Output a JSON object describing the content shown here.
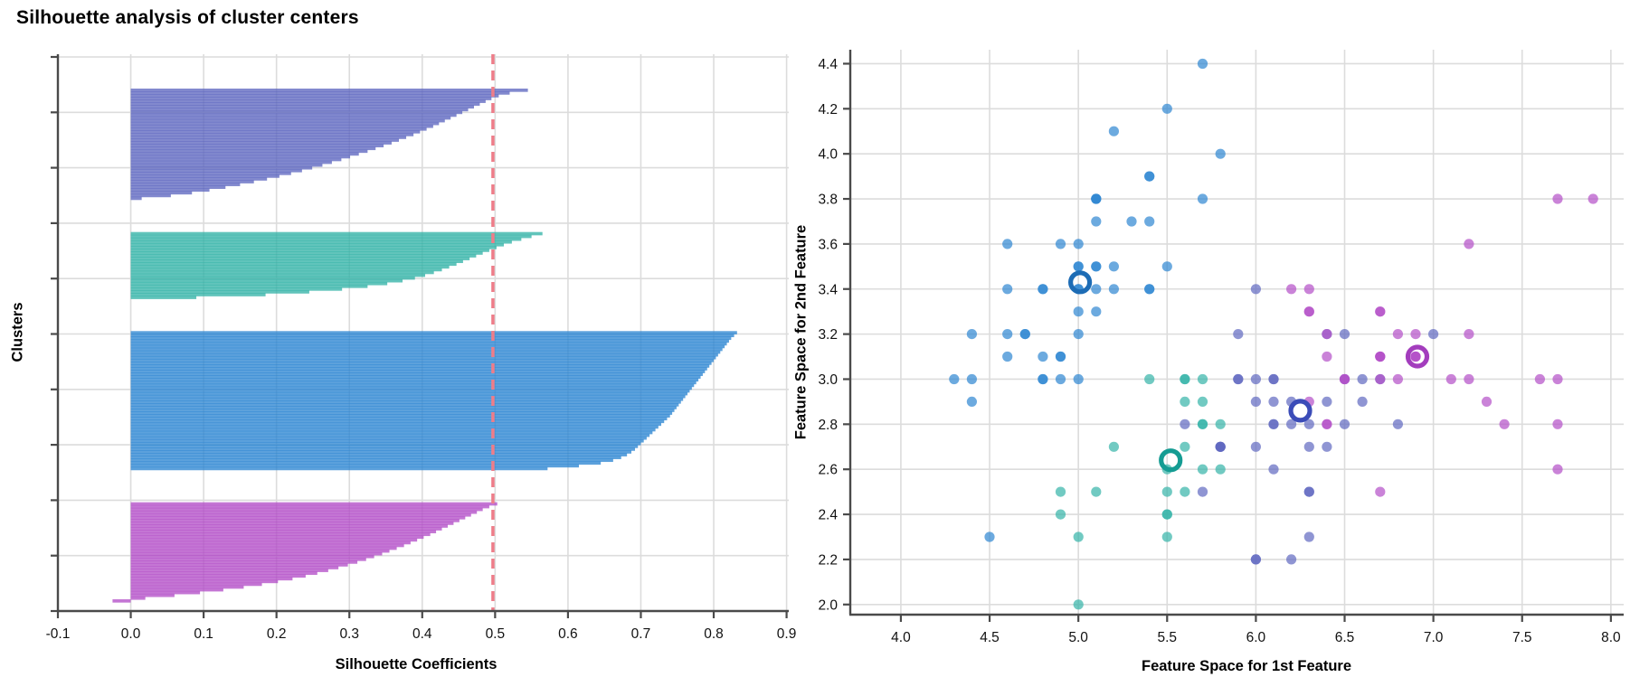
{
  "title": "Silhouette analysis of cluster centers",
  "colors": {
    "background": "#ffffff",
    "grid": "#dcdcdc",
    "spine": "#4a4a4a",
    "text": "#000000",
    "avg_line": "#ee7d89",
    "clusters": {
      "blue": {
        "base": "#2e86d2",
        "ring": "#1d6cb5"
      },
      "teal": {
        "base": "#35b3a8",
        "ring": "#159c93"
      },
      "indigo": {
        "base": "#5f68c0",
        "ring": "#3b4cb8"
      },
      "magenta": {
        "base": "#b44fc8",
        "ring": "#a33dbd"
      }
    }
  },
  "chart_data": [
    {
      "type": "silhouette",
      "title": "Silhouette analysis of cluster centers",
      "xlabel": "Silhouette Coefficients",
      "ylabel": "Clusters",
      "xlim": [
        -0.1,
        0.903
      ],
      "xticks": [
        -0.1,
        0.0,
        0.1,
        0.2,
        0.3,
        0.4,
        0.5,
        0.6,
        0.7,
        0.8,
        0.9
      ],
      "ytick_count": 11,
      "grid": true,
      "avg_score": 0.497,
      "clusters": [
        {
          "name": "cluster-indigo",
          "color_id": "indigo",
          "values": [
            0.545,
            0.52,
            0.505,
            0.495,
            0.487,
            0.479,
            0.471,
            0.463,
            0.455,
            0.447,
            0.439,
            0.431,
            0.423,
            0.415,
            0.406,
            0.397,
            0.388,
            0.378,
            0.368,
            0.358,
            0.347,
            0.336,
            0.325,
            0.313,
            0.301,
            0.289,
            0.276,
            0.263,
            0.249,
            0.235,
            0.22,
            0.204,
            0.187,
            0.169,
            0.15,
            0.13,
            0.108,
            0.084,
            0.055,
            0.015
          ]
        },
        {
          "name": "cluster-teal",
          "color_id": "teal",
          "values": [
            0.565,
            0.55,
            0.536,
            0.523,
            0.512,
            0.502,
            0.492,
            0.483,
            0.474,
            0.465,
            0.456,
            0.447,
            0.437,
            0.427,
            0.416,
            0.404,
            0.39,
            0.373,
            0.352,
            0.325,
            0.29,
            0.245,
            0.185,
            0.09
          ]
        },
        {
          "name": "cluster-blue",
          "color_id": "blue",
          "values": [
            0.832,
            0.828,
            0.824,
            0.821,
            0.818,
            0.815,
            0.812,
            0.809,
            0.806,
            0.803,
            0.8,
            0.797,
            0.794,
            0.791,
            0.788,
            0.785,
            0.782,
            0.779,
            0.776,
            0.773,
            0.77,
            0.767,
            0.764,
            0.761,
            0.758,
            0.755,
            0.752,
            0.749,
            0.746,
            0.743,
            0.74,
            0.736,
            0.732,
            0.728,
            0.724,
            0.72,
            0.716,
            0.712,
            0.708,
            0.704,
            0.7,
            0.696,
            0.692,
            0.687,
            0.681,
            0.673,
            0.662,
            0.645,
            0.615,
            0.572
          ]
        },
        {
          "name": "cluster-magenta",
          "color_id": "magenta",
          "values": [
            0.503,
            0.492,
            0.483,
            0.475,
            0.467,
            0.459,
            0.451,
            0.443,
            0.435,
            0.427,
            0.419,
            0.411,
            0.402,
            0.393,
            0.384,
            0.375,
            0.365,
            0.355,
            0.345,
            0.334,
            0.323,
            0.311,
            0.298,
            0.285,
            0.271,
            0.256,
            0.24,
            0.222,
            0.202,
            0.18,
            0.155,
            0.127,
            0.095,
            0.06,
            0.02,
            -0.025
          ]
        }
      ]
    },
    {
      "type": "scatter",
      "xlabel": "Feature Space for 1st Feature",
      "ylabel": "Feature Space for 2nd Feature",
      "xlim": [
        3.715,
        8.072
      ],
      "ylim": [
        1.955,
        4.462
      ],
      "xticks": [
        4.0,
        4.5,
        5.0,
        5.5,
        6.0,
        6.5,
        7.0,
        7.5,
        8.0
      ],
      "yticks": [
        2.0,
        2.2,
        2.4,
        2.6,
        2.8,
        3.0,
        3.2,
        3.4,
        3.6,
        3.8,
        4.0,
        4.2,
        4.4
      ],
      "grid": true,
      "marker_opacity": 0.7,
      "series": [
        {
          "name": "cluster-blue",
          "color_id": "blue",
          "center": [
            5.01,
            3.43
          ],
          "points": [
            [
              5.1,
              3.5
            ],
            [
              4.9,
              3.0
            ],
            [
              4.7,
              3.2
            ],
            [
              4.6,
              3.1
            ],
            [
              5.0,
              3.6
            ],
            [
              5.4,
              3.9
            ],
            [
              4.6,
              3.4
            ],
            [
              5.0,
              3.4
            ],
            [
              4.4,
              2.9
            ],
            [
              4.9,
              3.1
            ],
            [
              5.4,
              3.7
            ],
            [
              4.8,
              3.4
            ],
            [
              4.8,
              3.0
            ],
            [
              4.3,
              3.0
            ],
            [
              5.8,
              4.0
            ],
            [
              5.7,
              4.4
            ],
            [
              5.4,
              3.9
            ],
            [
              5.1,
              3.5
            ],
            [
              5.7,
              3.8
            ],
            [
              5.1,
              3.8
            ],
            [
              5.4,
              3.4
            ],
            [
              5.1,
              3.7
            ],
            [
              4.6,
              3.6
            ],
            [
              5.1,
              3.3
            ],
            [
              4.8,
              3.4
            ],
            [
              5.0,
              3.0
            ],
            [
              5.0,
              3.4
            ],
            [
              5.2,
              3.5
            ],
            [
              5.2,
              3.4
            ],
            [
              4.7,
              3.2
            ],
            [
              4.8,
              3.1
            ],
            [
              5.4,
              3.4
            ],
            [
              5.2,
              4.1
            ],
            [
              5.5,
              4.2
            ],
            [
              4.9,
              3.1
            ],
            [
              5.0,
              3.2
            ],
            [
              5.5,
              3.5
            ],
            [
              4.9,
              3.6
            ],
            [
              4.4,
              3.0
            ],
            [
              5.1,
              3.4
            ],
            [
              5.0,
              3.5
            ],
            [
              4.5,
              2.3
            ],
            [
              4.4,
              3.2
            ],
            [
              5.0,
              3.5
            ],
            [
              5.1,
              3.8
            ],
            [
              4.8,
              3.0
            ],
            [
              5.1,
              3.8
            ],
            [
              4.6,
              3.2
            ],
            [
              5.3,
              3.7
            ],
            [
              5.0,
              3.3
            ]
          ]
        },
        {
          "name": "cluster-teal",
          "color_id": "teal",
          "center": [
            5.52,
            2.64
          ],
          "points": [
            [
              5.5,
              2.3
            ],
            [
              5.7,
              2.8
            ],
            [
              4.9,
              2.4
            ],
            [
              5.2,
              2.7
            ],
            [
              5.0,
              2.0
            ],
            [
              5.6,
              2.9
            ],
            [
              5.6,
              3.0
            ],
            [
              5.6,
              2.5
            ],
            [
              5.7,
              2.6
            ],
            [
              5.5,
              2.4
            ],
            [
              5.5,
              2.4
            ],
            [
              5.4,
              3.0
            ],
            [
              5.6,
              3.0
            ],
            [
              5.5,
              2.5
            ],
            [
              5.5,
              2.6
            ],
            [
              5.8,
              2.6
            ],
            [
              5.0,
              2.3
            ],
            [
              5.6,
              2.7
            ],
            [
              5.7,
              3.0
            ],
            [
              5.7,
              2.9
            ],
            [
              5.1,
              2.5
            ],
            [
              5.7,
              2.8
            ],
            [
              4.9,
              2.5
            ],
            [
              5.8,
              2.8
            ]
          ]
        },
        {
          "name": "cluster-indigo",
          "color_id": "indigo",
          "center": [
            6.25,
            2.86
          ],
          "points": [
            [
              7.0,
              3.2
            ],
            [
              6.4,
              3.2
            ],
            [
              6.5,
              2.8
            ],
            [
              6.6,
              2.9
            ],
            [
              5.9,
              3.0
            ],
            [
              6.0,
              2.2
            ],
            [
              6.1,
              2.9
            ],
            [
              5.8,
              2.7
            ],
            [
              6.2,
              2.2
            ],
            [
              5.9,
              3.2
            ],
            [
              6.1,
              2.8
            ],
            [
              6.3,
              2.5
            ],
            [
              6.1,
              2.8
            ],
            [
              6.4,
              2.9
            ],
            [
              6.6,
              3.0
            ],
            [
              6.8,
              2.8
            ],
            [
              6.7,
              3.0
            ],
            [
              6.0,
              2.9
            ],
            [
              5.8,
              2.7
            ],
            [
              6.0,
              2.7
            ],
            [
              6.0,
              3.4
            ],
            [
              6.3,
              2.3
            ],
            [
              6.1,
              3.0
            ],
            [
              6.2,
              2.9
            ],
            [
              5.8,
              2.7
            ],
            [
              6.5,
              3.2
            ],
            [
              6.4,
              2.7
            ],
            [
              5.7,
              2.5
            ],
            [
              6.5,
              3.0
            ],
            [
              6.0,
              2.2
            ],
            [
              5.6,
              2.8
            ],
            [
              6.3,
              2.7
            ],
            [
              6.2,
              2.8
            ],
            [
              6.1,
              3.0
            ],
            [
              6.3,
              2.8
            ],
            [
              6.1,
              2.6
            ],
            [
              6.0,
              3.0
            ],
            [
              6.3,
              2.5
            ],
            [
              5.9,
              3.0
            ],
            [
              5.8,
              2.7
            ]
          ]
        },
        {
          "name": "cluster-magenta",
          "color_id": "magenta",
          "center": [
            6.91,
            3.1
          ],
          "points": [
            [
              6.9,
              3.1
            ],
            [
              6.3,
              3.3
            ],
            [
              6.7,
              3.1
            ],
            [
              6.7,
              3.1
            ],
            [
              6.3,
              3.3
            ],
            [
              7.1,
              3.0
            ],
            [
              6.3,
              2.9
            ],
            [
              6.5,
              3.0
            ],
            [
              7.6,
              3.0
            ],
            [
              7.3,
              2.9
            ],
            [
              6.7,
              2.5
            ],
            [
              7.2,
              3.6
            ],
            [
              6.8,
              3.0
            ],
            [
              6.4,
              3.2
            ],
            [
              7.7,
              3.8
            ],
            [
              7.7,
              2.6
            ],
            [
              6.9,
              3.2
            ],
            [
              7.7,
              2.8
            ],
            [
              6.7,
              3.3
            ],
            [
              7.2,
              3.2
            ],
            [
              6.4,
              2.8
            ],
            [
              7.2,
              3.0
            ],
            [
              7.4,
              2.8
            ],
            [
              7.9,
              3.8
            ],
            [
              6.4,
              2.8
            ],
            [
              7.7,
              3.0
            ],
            [
              6.3,
              3.4
            ],
            [
              6.4,
              3.1
            ],
            [
              6.9,
              3.1
            ],
            [
              6.7,
              3.1
            ],
            [
              6.9,
              3.1
            ],
            [
              6.8,
              3.2
            ],
            [
              6.7,
              3.3
            ],
            [
              6.7,
              3.0
            ],
            [
              6.5,
              3.0
            ],
            [
              6.2,
              3.4
            ]
          ]
        }
      ]
    }
  ]
}
